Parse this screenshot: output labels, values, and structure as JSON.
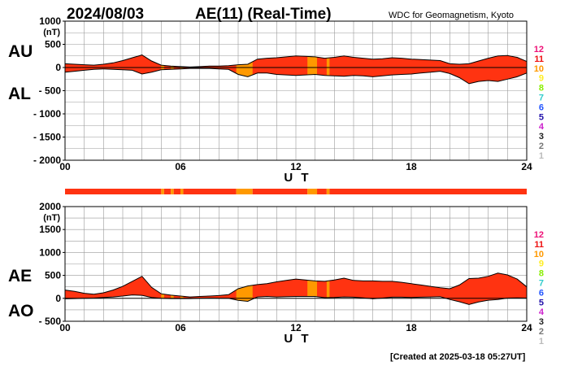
{
  "header": {
    "date": "2024/08/03",
    "title": "AE(11) (Real-Time)",
    "source": "WDC for Geomagnetism, Kyoto"
  },
  "footer": {
    "created": "[Created at 2025-03-18 05:27UT]"
  },
  "legend": {
    "entries": [
      "12",
      "11",
      "10",
      "9",
      "8",
      "7",
      "6",
      "5",
      "4",
      "3",
      "2",
      "1"
    ],
    "colors": [
      "#ee1177",
      "#ee1111",
      "#ff9900",
      "#ffee22",
      "#88ee00",
      "#33cccc",
      "#2255ff",
      "#2211aa",
      "#cc22cc",
      "#222222",
      "#777777",
      "#bbbbbb"
    ]
  },
  "colors": {
    "fill_main": "#ff3311",
    "fill_low": "#ff9900",
    "outline": "#000000",
    "grid": "#999999"
  },
  "station_bar": [
    {
      "from": 0,
      "to": 5.0,
      "stations": 11
    },
    {
      "from": 5.0,
      "to": 5.15,
      "stations": 10
    },
    {
      "from": 5.15,
      "to": 5.5,
      "stations": 11
    },
    {
      "from": 5.5,
      "to": 5.65,
      "stations": 10
    },
    {
      "from": 5.65,
      "to": 6.0,
      "stations": 11
    },
    {
      "from": 6.0,
      "to": 6.15,
      "stations": 10
    },
    {
      "from": 6.15,
      "to": 8.9,
      "stations": 11
    },
    {
      "from": 8.9,
      "to": 9.75,
      "stations": 10
    },
    {
      "from": 9.75,
      "to": 12.6,
      "stations": 11
    },
    {
      "from": 12.6,
      "to": 13.1,
      "stations": 10
    },
    {
      "from": 13.1,
      "to": 13.6,
      "stations": 11
    },
    {
      "from": 13.6,
      "to": 13.75,
      "stations": 10
    },
    {
      "from": 13.75,
      "to": 24,
      "stations": 11
    }
  ],
  "chart_data": [
    {
      "type": "area",
      "xlabel": "U T",
      "ylabel": "(nT)",
      "series_labels": [
        "AU",
        "AL"
      ],
      "xlim": [
        0,
        24
      ],
      "ylim": [
        -2000,
        1000
      ],
      "yticks": [
        1000,
        500,
        0,
        -500,
        -1000,
        -1500,
        -2000
      ],
      "yticklabels": [
        "1000",
        "500",
        "0",
        "- 500",
        "- 1000",
        "- 1500",
        "- 2000"
      ],
      "xticks": [
        0,
        6,
        12,
        18,
        24
      ],
      "xticklabels": [
        "00",
        "06",
        "12",
        "18",
        "24"
      ],
      "x": [
        0,
        0.5,
        1,
        1.5,
        2,
        2.5,
        3,
        3.5,
        4,
        4.5,
        5,
        5.5,
        6,
        6.5,
        7,
        7.5,
        8,
        8.5,
        9,
        9.5,
        10,
        10.5,
        11,
        11.5,
        12,
        12.5,
        13,
        13.5,
        14,
        14.5,
        15,
        15.5,
        16,
        16.5,
        17,
        17.5,
        18,
        18.5,
        19,
        19.5,
        20,
        20.5,
        21,
        21.5,
        22,
        22.5,
        23,
        23.5,
        24
      ],
      "series": [
        {
          "name": "AU",
          "values": [
            80,
            70,
            60,
            50,
            70,
            100,
            150,
            210,
            270,
            140,
            50,
            30,
            20,
            10,
            20,
            30,
            30,
            40,
            60,
            70,
            180,
            200,
            210,
            230,
            250,
            240,
            230,
            200,
            220,
            250,
            220,
            200,
            180,
            190,
            210,
            200,
            180,
            170,
            160,
            150,
            80,
            70,
            80,
            140,
            200,
            250,
            260,
            220,
            130
          ]
        },
        {
          "name": "AL",
          "values": [
            -100,
            -80,
            -60,
            -40,
            -30,
            -40,
            -50,
            -60,
            -140,
            -100,
            -50,
            -40,
            -30,
            -20,
            -20,
            -20,
            -30,
            -40,
            -150,
            -200,
            -120,
            -120,
            -150,
            -160,
            -170,
            -160,
            -150,
            -170,
            -180,
            -190,
            -170,
            -180,
            -200,
            -180,
            -160,
            -150,
            -140,
            -120,
            -100,
            -80,
            -130,
            -220,
            -350,
            -300,
            -280,
            -300,
            -250,
            -200,
            -120
          ]
        }
      ]
    },
    {
      "type": "area",
      "xlabel": "U T",
      "ylabel": "(nT)",
      "series_labels": [
        "AE",
        "AO"
      ],
      "xlim": [
        0,
        24
      ],
      "ylim": [
        -500,
        2000
      ],
      "yticks": [
        2000,
        1500,
        1000,
        500,
        0,
        -500
      ],
      "yticklabels": [
        "2000",
        "1500",
        "1000",
        "500",
        "0",
        "- 500"
      ],
      "xticks": [
        0,
        6,
        12,
        18,
        24
      ],
      "xticklabels": [
        "00",
        "06",
        "12",
        "18",
        "24"
      ],
      "x": [
        0,
        0.5,
        1,
        1.5,
        2,
        2.5,
        3,
        3.5,
        4,
        4.5,
        5,
        5.5,
        6,
        6.5,
        7,
        7.5,
        8,
        8.5,
        9,
        9.5,
        10,
        10.5,
        11,
        11.5,
        12,
        12.5,
        13,
        13.5,
        14,
        14.5,
        15,
        15.5,
        16,
        16.5,
        17,
        17.5,
        18,
        18.5,
        19,
        19.5,
        20,
        20.5,
        21,
        21.5,
        22,
        22.5,
        23,
        23.5,
        24
      ],
      "series": [
        {
          "name": "AE",
          "values": [
            180,
            150,
            110,
            90,
            120,
            180,
            260,
            370,
            480,
            240,
            100,
            70,
            50,
            30,
            40,
            50,
            60,
            80,
            210,
            270,
            300,
            320,
            360,
            390,
            420,
            400,
            380,
            370,
            400,
            440,
            390,
            380,
            380,
            370,
            370,
            350,
            320,
            290,
            260,
            230,
            210,
            290,
            430,
            440,
            480,
            550,
            510,
            420,
            250
          ]
        },
        {
          "name": "AO",
          "values": [
            -10,
            -5,
            0,
            5,
            20,
            30,
            50,
            75,
            65,
            20,
            0,
            -5,
            -5,
            -5,
            0,
            5,
            0,
            0,
            -45,
            -65,
            30,
            40,
            30,
            35,
            40,
            40,
            40,
            15,
            20,
            30,
            25,
            10,
            -10,
            5,
            25,
            25,
            20,
            25,
            30,
            35,
            -25,
            -75,
            -135,
            -80,
            -40,
            -25,
            5,
            10,
            5
          ]
        }
      ]
    }
  ]
}
